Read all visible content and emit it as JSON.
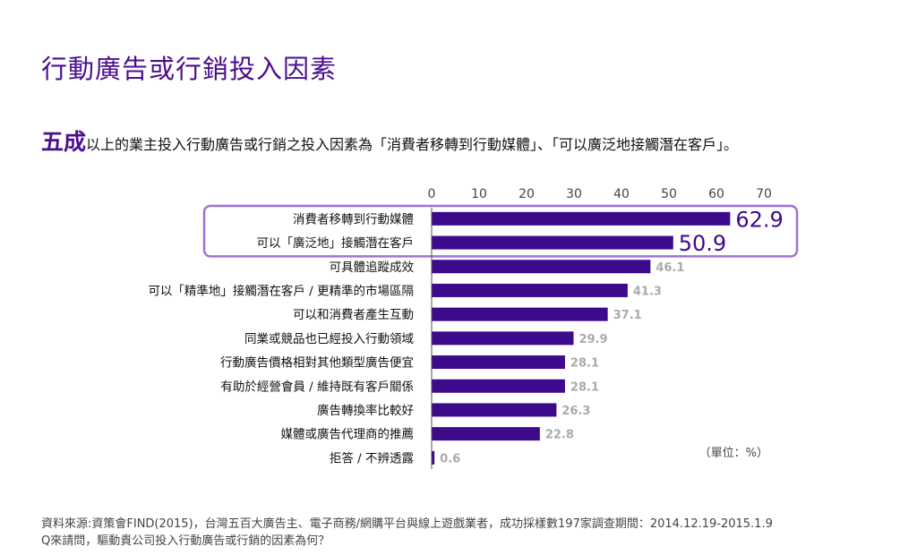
{
  "page": {
    "title": "行動廣告或行銷投入因素",
    "subtitle_emphasis": "五成",
    "subtitle_rest": "以上的業主投入行動廣告或行銷之投入因素為「消費者移轉到行動媒體」、「可以廣泛地接觸潛在客戶」。"
  },
  "chart_data": {
    "type": "bar",
    "orientation": "horizontal",
    "unit_label": "（單位：%）",
    "xlim": [
      0,
      70
    ],
    "ticks": [
      "0",
      "10",
      "20",
      "30",
      "40",
      "50",
      "60",
      "70"
    ],
    "categories": [
      "消費者移轉到行動媒體",
      "可以「廣泛地」接觸潛在客戶",
      "可具體追蹤成效",
      "可以「精準地」接觸潛在客戶 / 更精準的市場區隔",
      "可以和消費者產生互動",
      "同業或競品也已經投入行動領域",
      "行動廣告價格相對其他類型廣告便宜",
      "有助於經營會員 / 維持既有客戶關係",
      "廣告轉換率比較好",
      "媒體或廣告代理商的推薦",
      "拒答 / 不辨透露"
    ],
    "values": [
      62.9,
      50.9,
      46.1,
      41.3,
      37.1,
      29.9,
      28.1,
      28.1,
      26.3,
      22.8,
      0.6
    ],
    "value_labels": [
      "62.9",
      "50.9",
      "46.1",
      "41.3",
      "37.1",
      "29.9",
      "28.1",
      "28.1",
      "26.3",
      "22.8",
      "0.6"
    ],
    "highlighted_count": 2,
    "bar_color": "#3d0a8c",
    "highlight_box_color": "#a070d8",
    "highlight_label_color": "#3d0a8c",
    "label_color": "#aaaaaa"
  },
  "footnote": {
    "source": "資料來源:資策會FIND(2015)，台灣五百大廣告主、電子商務/網購平台與線上遊戲業者，成功採樣數197家調查期間：2014.12.19-2015.1.9",
    "question": "Q來請問，驅動貴公司投入行動廣告或行銷的因素為何？"
  }
}
